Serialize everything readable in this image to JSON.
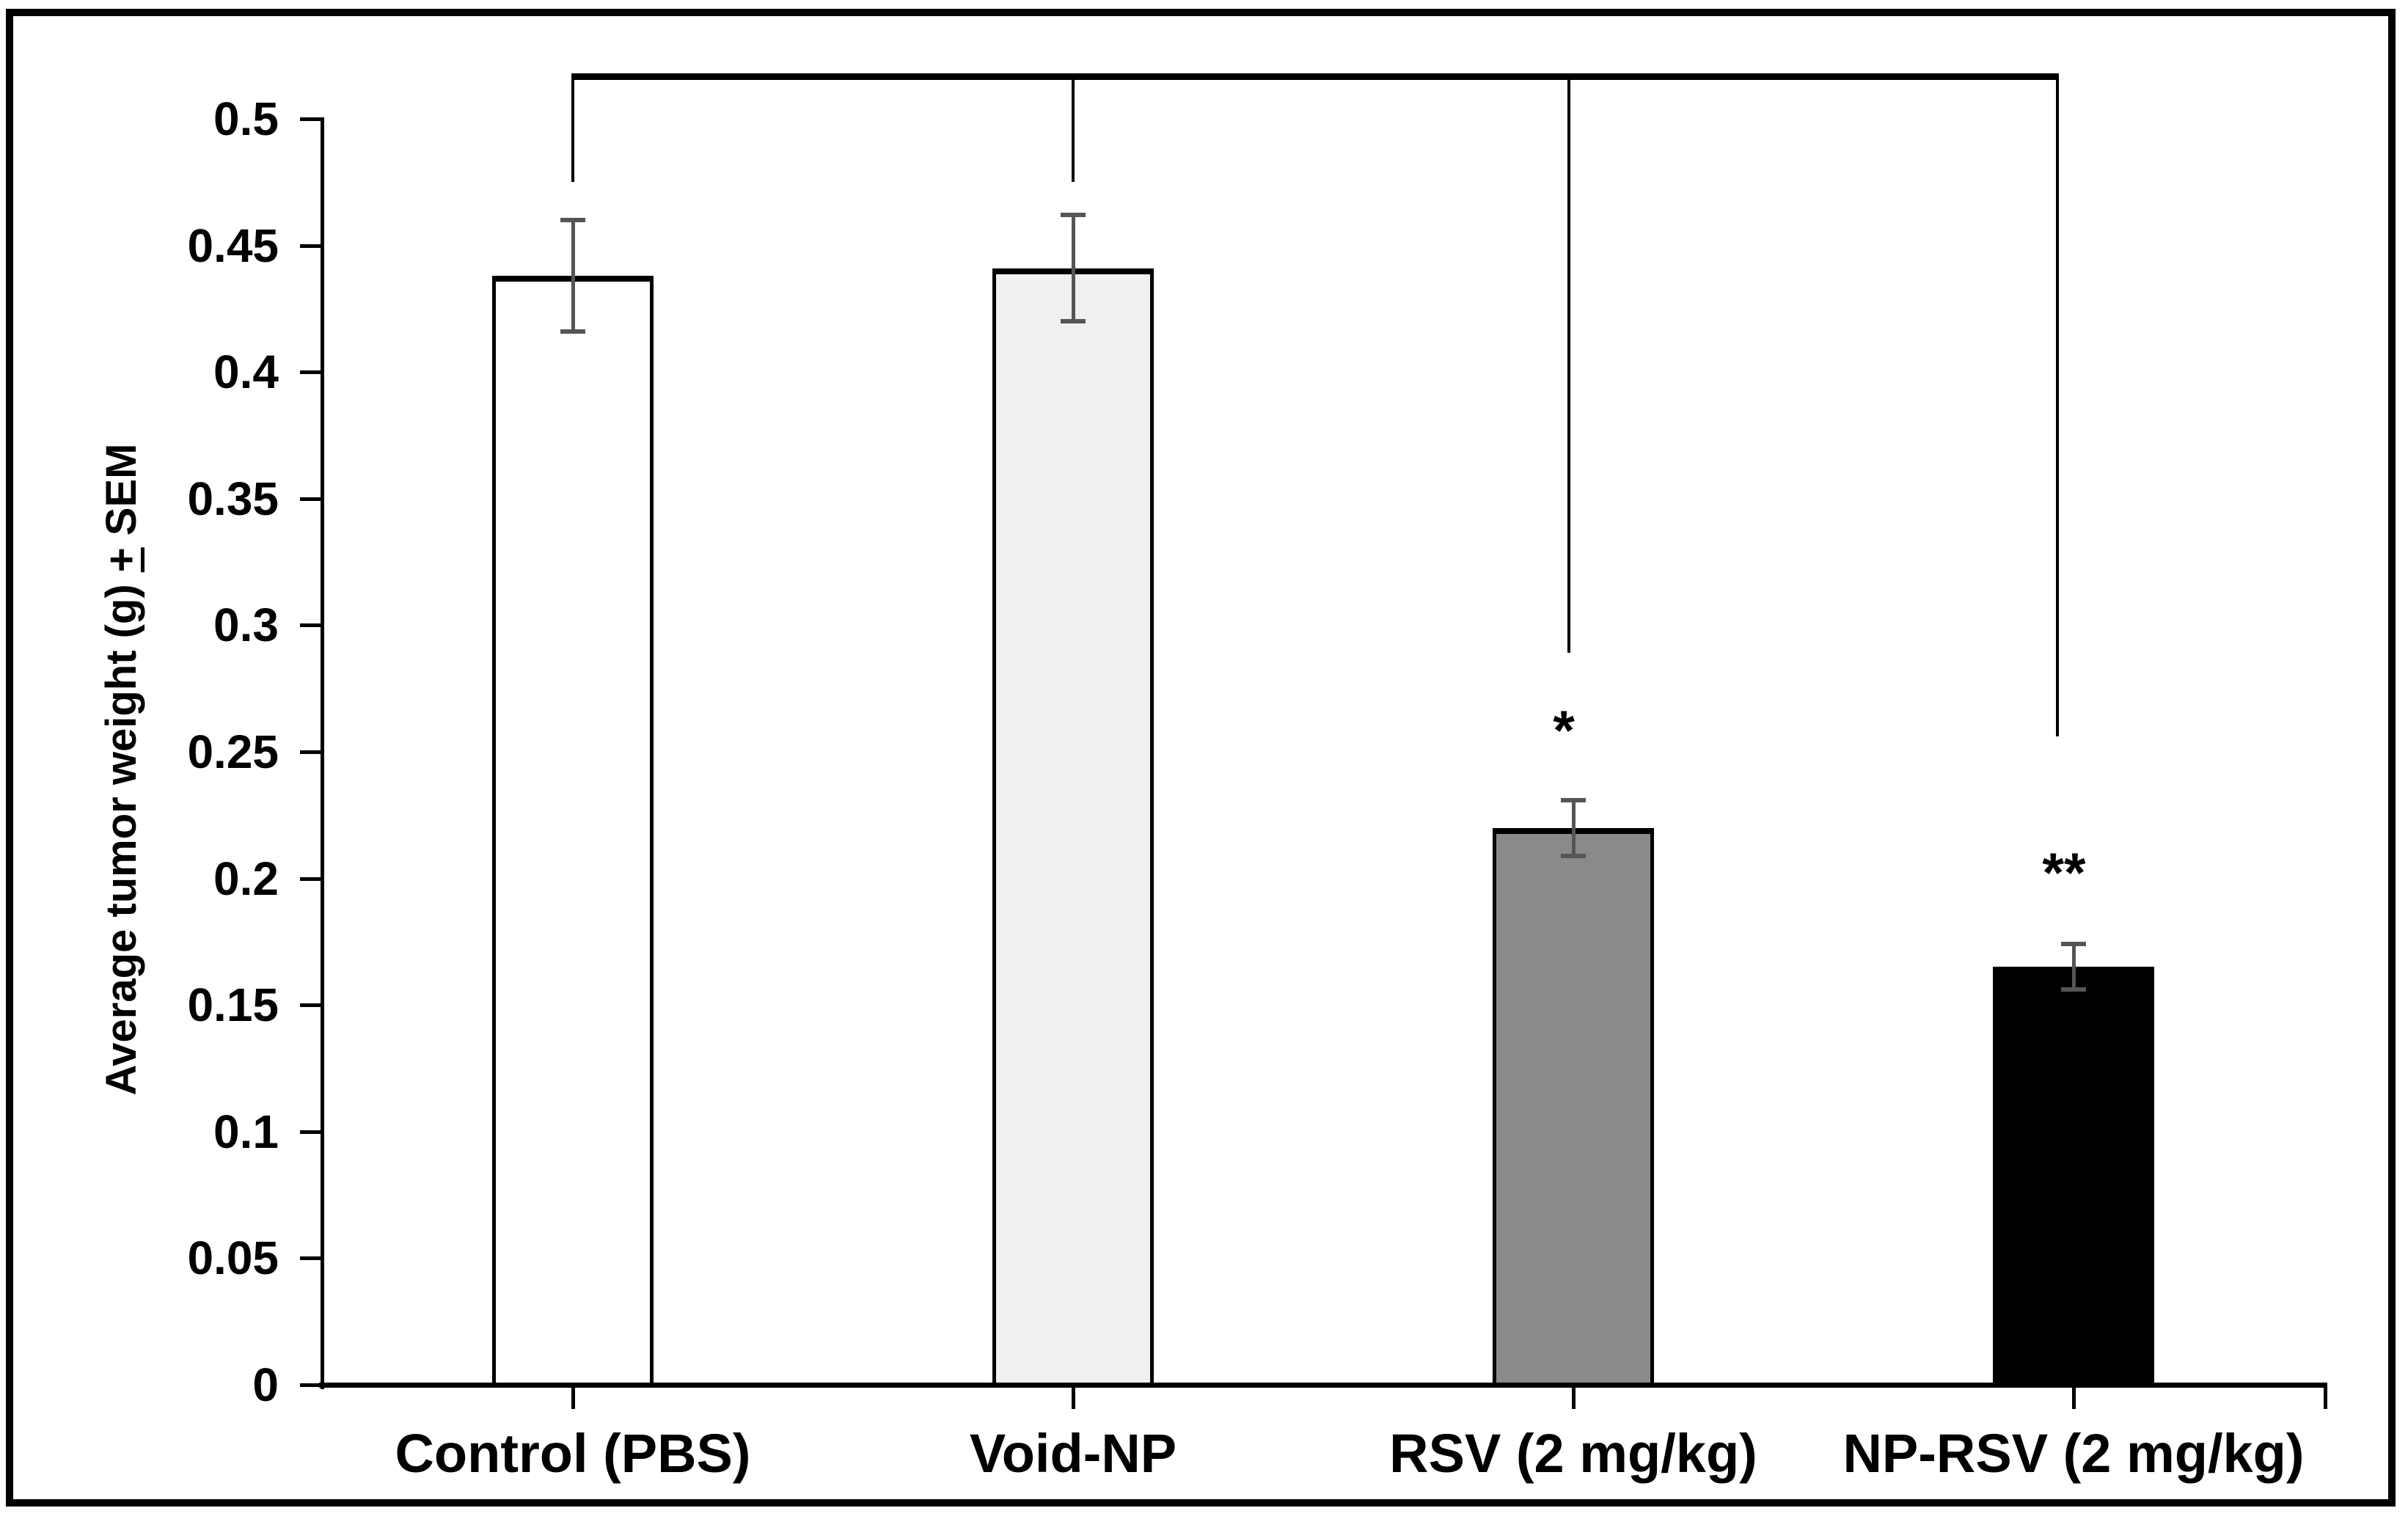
{
  "chart_data": {
    "type": "bar",
    "title": "",
    "xlabel": "",
    "ylabel": "Average tumor weight (g) ± SEM",
    "ylabel_prefix": "Average tumor weight (g) ",
    "ylabel_plusminus": "+",
    "ylabel_suffix": " SEM",
    "ylim": [
      0,
      0.5
    ],
    "ytick_step": 0.05,
    "ytick_labels": [
      "0",
      "0.05",
      "0.1",
      "0.15",
      "0.2",
      "0.25",
      "0.3",
      "0.35",
      "0.4",
      "0.45",
      "0.5"
    ],
    "grid": false,
    "legend": "none",
    "categories": [
      "Control (PBS)",
      "Void-NP",
      "RSV (2 mg/kg)",
      "NP-RSV (2 mg/kg)"
    ],
    "values": [
      0.438,
      0.441,
      0.22,
      0.165
    ],
    "sem": [
      0.022,
      0.021,
      0.011,
      0.009
    ],
    "bar_fill_colors": [
      "#ffffff",
      "#f0f0f0",
      "#8a8a8a",
      "#000000"
    ],
    "bar_edge_color": "#000000",
    "error_bar_color": "#555555",
    "significance_markers": [
      {
        "bar_index": 2,
        "label": "*",
        "y_value": 0.258
      },
      {
        "bar_index": 3,
        "label": "**",
        "y_value": 0.202
      }
    ],
    "comparison_bracket": {
      "top_value": 0.518,
      "connects_categories": [
        0,
        1,
        2,
        3
      ],
      "drop_end_values": [
        0.475,
        0.475,
        0.289,
        0.256
      ]
    }
  }
}
